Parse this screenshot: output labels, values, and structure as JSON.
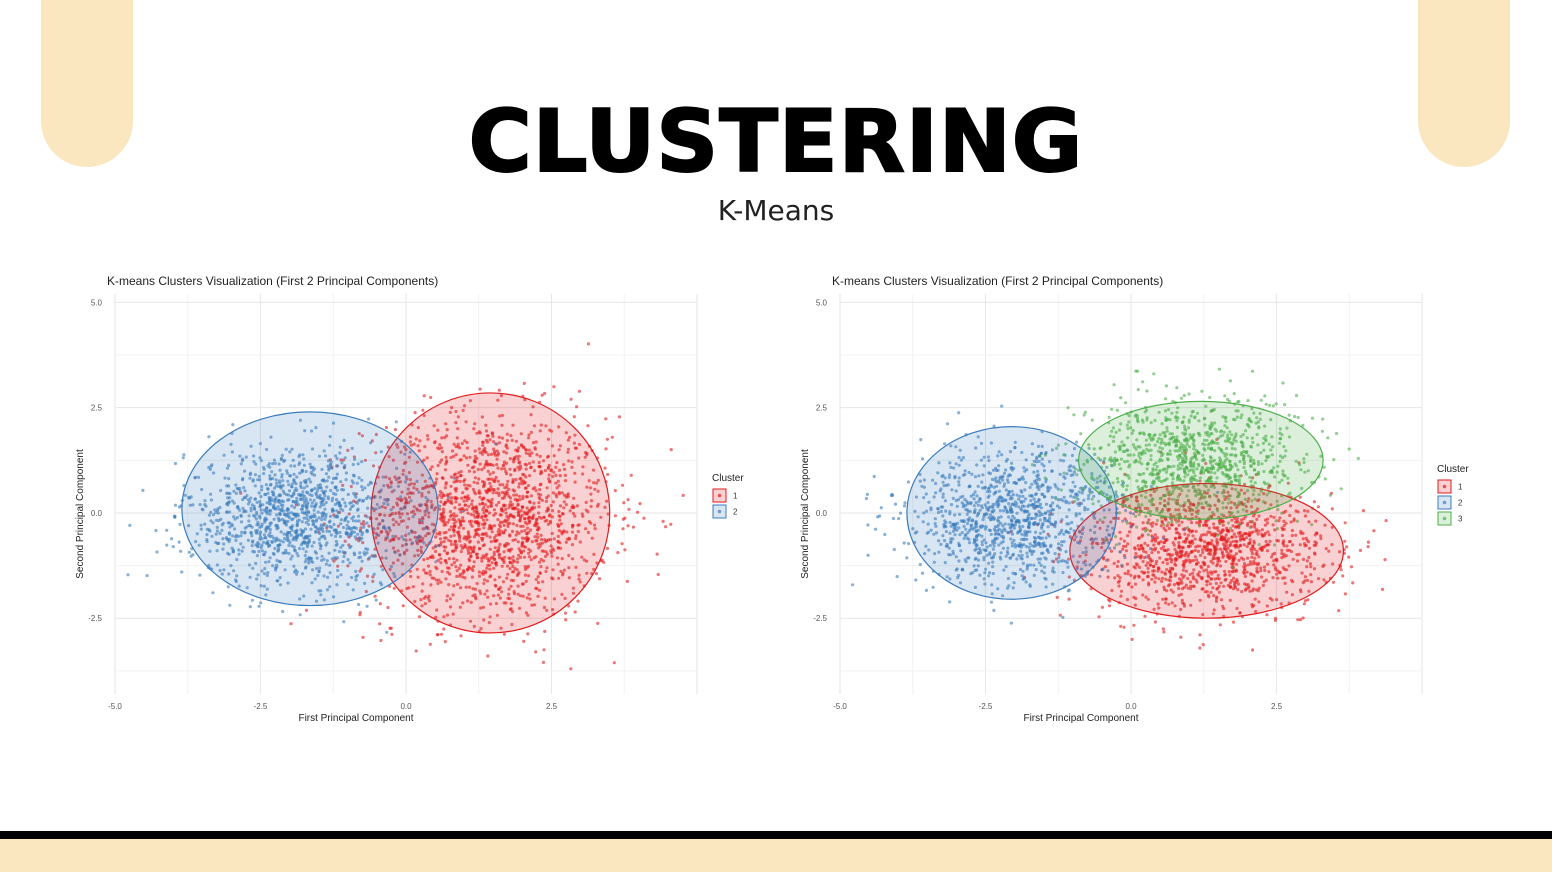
{
  "slide": {
    "title": "CLUSTERING",
    "subtitle": "K-Means",
    "colors": {
      "accent": "#fae6bf",
      "bar": "#000000"
    }
  },
  "chart_data": [
    {
      "type": "scatter",
      "title": "K-means Clusters Visualization (First 2 Principal Components)",
      "xlabel": "First Principal Component",
      "ylabel": "Second Principal Component",
      "xlim": [
        -5.0,
        5.0
      ],
      "ylim": [
        -4.3,
        5.2
      ],
      "xticks": [
        "-5.0",
        "-2.5",
        "0.0",
        "2.5"
      ],
      "xtick_values": [
        -5.0,
        -2.5,
        0.0,
        2.5
      ],
      "yticks": [
        "5.0",
        "2.5",
        "0.0",
        "-2.5"
      ],
      "ytick_values": [
        5.0,
        2.5,
        0.0,
        -2.5
      ],
      "grid": true,
      "legend": {
        "title": "Cluster",
        "position": "right"
      },
      "series": [
        {
          "name": "1",
          "color": "#e31a1c",
          "n": 1700,
          "center": [
            1.4,
            -0.1
          ],
          "spread": [
            1.05,
            1.2
          ],
          "ellipse": [
            1.45,
            0.0,
            2.05,
            2.85
          ]
        },
        {
          "name": "2",
          "color": "#3a7dbd",
          "n": 1200,
          "center": [
            -1.9,
            -0.1
          ],
          "spread": [
            0.95,
            0.8
          ],
          "ellipse": [
            -1.65,
            0.1,
            2.2,
            2.3
          ]
        }
      ]
    },
    {
      "type": "scatter",
      "title": "K-means Clusters Visualization (First 2 Principal Components)",
      "xlabel": "First Principal Component",
      "ylabel": "Second Principal Component",
      "xlim": [
        -5.0,
        5.0
      ],
      "ylim": [
        -4.3,
        5.2
      ],
      "xticks": [
        "-5.0",
        "-2.5",
        "0.0",
        "2.5"
      ],
      "xtick_values": [
        -5.0,
        -2.5,
        0.0,
        2.5
      ],
      "yticks": [
        "5.0",
        "2.5",
        "0.0",
        "-2.5"
      ],
      "ytick_values": [
        5.0,
        2.5,
        0.0,
        -2.5
      ],
      "grid": true,
      "legend": {
        "title": "Cluster",
        "position": "right"
      },
      "series": [
        {
          "name": "1",
          "color": "#e31a1c",
          "n": 1200,
          "center": [
            1.3,
            -0.9
          ],
          "spread": [
            1.05,
            0.75
          ],
          "ellipse": [
            1.3,
            -0.9,
            2.35,
            1.6
          ]
        },
        {
          "name": "2",
          "color": "#3a7dbd",
          "n": 1100,
          "center": [
            -2.0,
            -0.1
          ],
          "spread": [
            0.95,
            0.8
          ],
          "ellipse": [
            -2.05,
            0.0,
            1.8,
            2.05
          ]
        },
        {
          "name": "3",
          "color": "#4daf4a",
          "n": 1000,
          "center": [
            1.1,
            1.2
          ],
          "spread": [
            0.95,
            0.75
          ],
          "ellipse": [
            1.2,
            1.25,
            2.1,
            1.4
          ]
        }
      ]
    }
  ]
}
